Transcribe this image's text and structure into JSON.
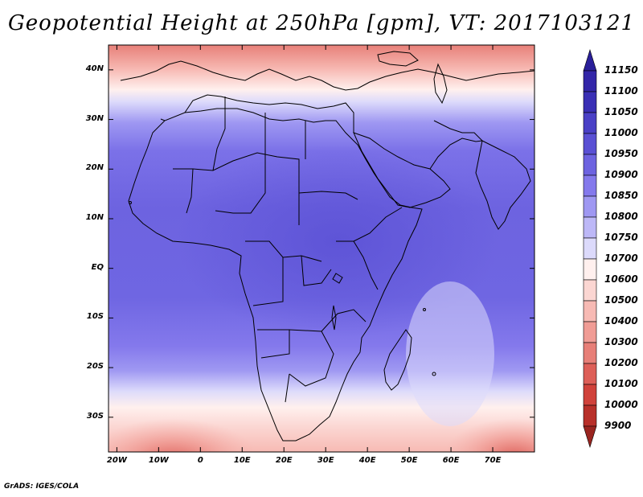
{
  "title": "Geopotential Height at 250hPa [gpm], VT: 2017103121",
  "credit": "GrADS: IGES/COLA",
  "map": {
    "lon_range": [
      -22,
      80
    ],
    "lat_range": [
      -37,
      45
    ],
    "y_ticks": [
      "40N",
      "30N",
      "20N",
      "10N",
      "EQ",
      "10S",
      "20S",
      "30S"
    ],
    "y_tick_values": [
      40,
      30,
      20,
      10,
      0,
      -10,
      -20,
      -30
    ],
    "x_ticks": [
      "20W",
      "10W",
      "0",
      "10E",
      "20E",
      "30E",
      "40E",
      "50E",
      "60E",
      "70E"
    ],
    "x_tick_values": [
      -20,
      -10,
      0,
      10,
      20,
      30,
      40,
      50,
      60,
      70
    ]
  },
  "colorbar": {
    "labels": [
      "11150",
      "11100",
      "11050",
      "11000",
      "10950",
      "10900",
      "10850",
      "10800",
      "10750",
      "10700",
      "10600",
      "10500",
      "10400",
      "10300",
      "10200",
      "10100",
      "10000",
      "9900"
    ],
    "colors": [
      "#2a1f9a",
      "#3326a8",
      "#3a2fb5",
      "#4a40c6",
      "#5a50d4",
      "#6d63e0",
      "#8479ec",
      "#9f98f2",
      "#bdb8f7",
      "#dcdafb",
      "#fff0ee",
      "#fbd6d2",
      "#f7bab4",
      "#f09c95",
      "#e77f78",
      "#dd5f58",
      "#d0423b",
      "#b8302a",
      "#9a2520"
    ]
  }
}
